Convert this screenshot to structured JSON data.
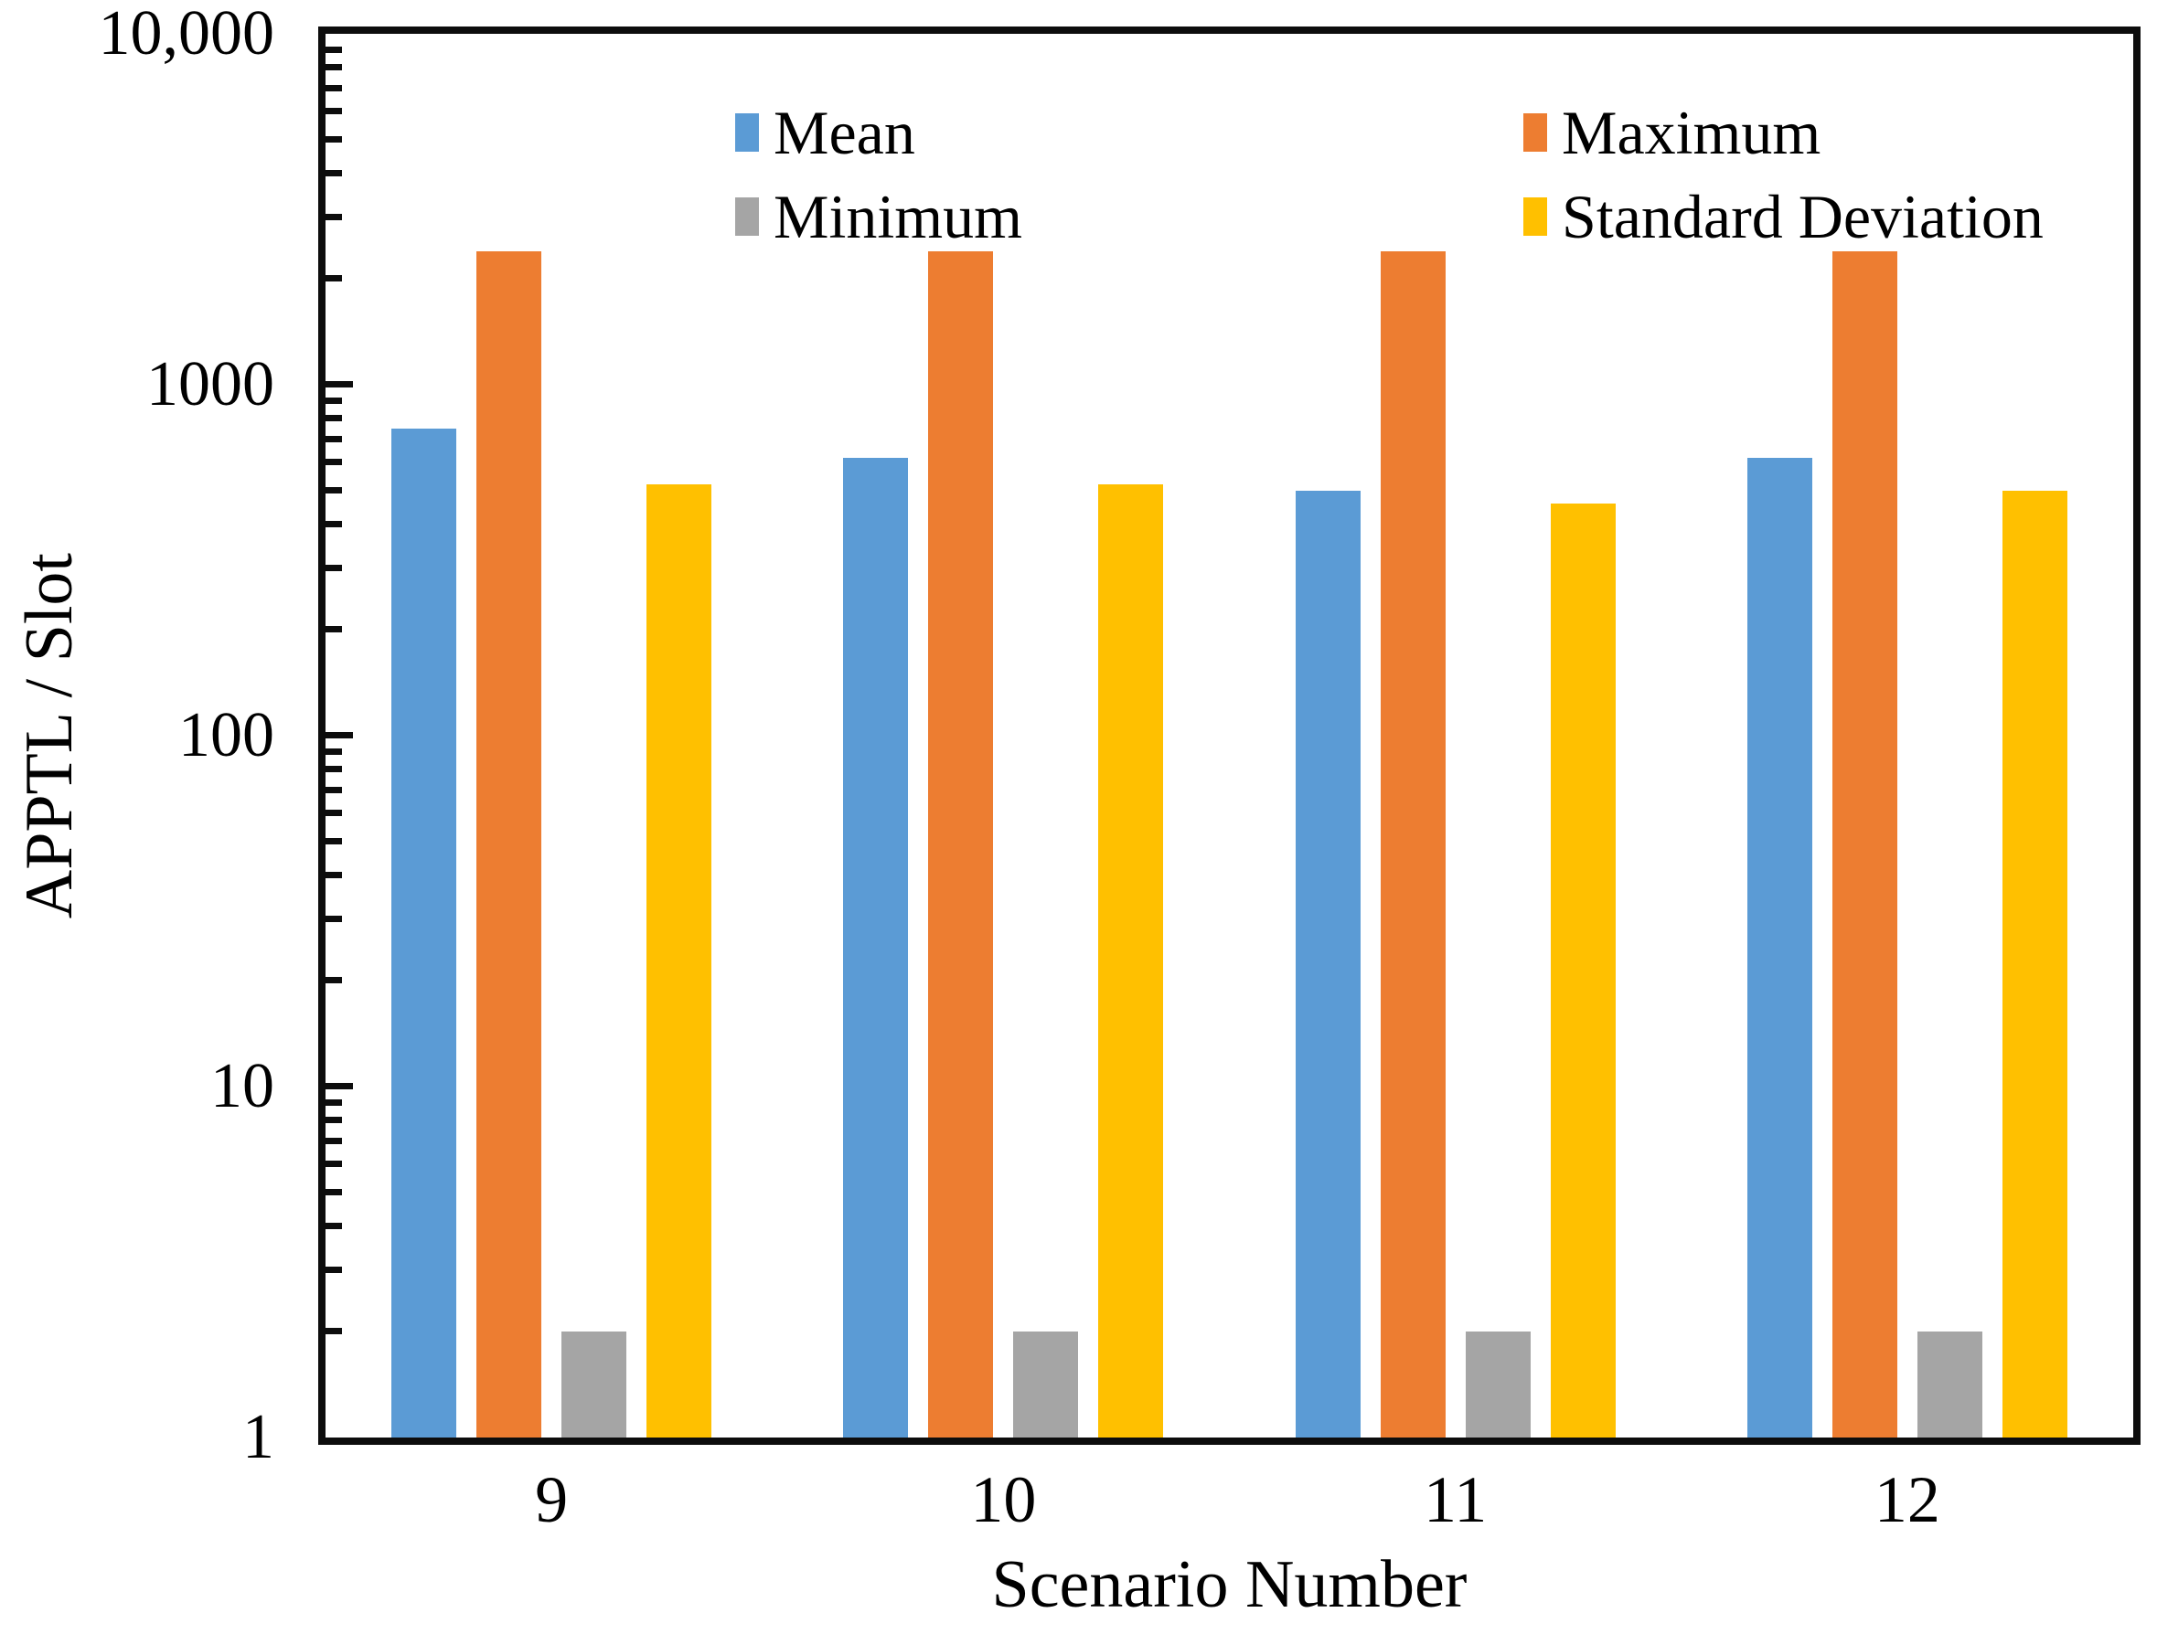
{
  "chart_data": {
    "type": "bar",
    "title": "",
    "xlabel": "Scenario Number",
    "ylabel": "APPTL / Slot",
    "categories": [
      "9",
      "10",
      "11",
      "12"
    ],
    "series": [
      {
        "name": "Mean",
        "color": "#5B9BD5",
        "values": [
          750,
          620,
          500,
          620
        ]
      },
      {
        "name": "Maximum",
        "color": "#ED7D31",
        "values": [
          2400,
          2400,
          2400,
          2400
        ]
      },
      {
        "name": "Minimum",
        "color": "#A5A5A5",
        "values": [
          2,
          2,
          2,
          2
        ]
      },
      {
        "name": "Standard Deviation",
        "color": "#FFC000",
        "values": [
          520,
          520,
          460,
          500
        ]
      }
    ],
    "y_axis": {
      "scale": "log",
      "min": 1,
      "max": 10000,
      "tick_labels": [
        "1",
        "10",
        "100",
        "1000",
        "10,000"
      ],
      "tick_values": [
        1,
        10,
        100,
        1000,
        10000
      ]
    },
    "legend_position": "top-inside",
    "grid": false,
    "axis_color": "#0d0d0d",
    "text_color": "#000000"
  }
}
